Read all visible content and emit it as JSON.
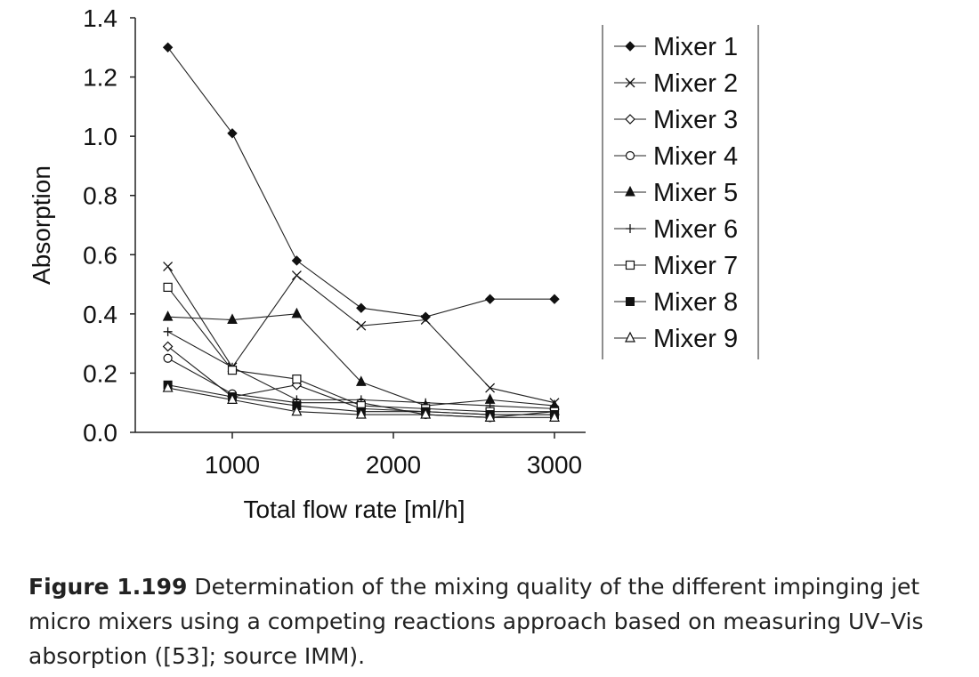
{
  "chart_data": {
    "type": "line",
    "xlabel": "Total flow rate [ml/h]",
    "ylabel": "Absorption",
    "xlim": [
      500,
      3000
    ],
    "ylim": [
      0,
      1.4
    ],
    "x_ticks": [
      "1000",
      "2000",
      "3000"
    ],
    "y_ticks": [
      "0.0",
      "0.2",
      "0.4",
      "0.6",
      "0.8",
      "1.0",
      "1.2",
      "1.4"
    ],
    "x": [
      600,
      1000,
      1400,
      1800,
      2200,
      2600,
      3000
    ],
    "legend_position": "right",
    "series": [
      {
        "name": "Mixer 1",
        "marker": "filled-diamond",
        "values": [
          1.3,
          1.01,
          0.58,
          0.42,
          0.39,
          0.45,
          0.45
        ]
      },
      {
        "name": "Mixer 2",
        "marker": "x",
        "values": [
          0.56,
          0.22,
          0.53,
          0.36,
          0.38,
          0.15,
          0.1
        ]
      },
      {
        "name": "Mixer 3",
        "marker": "open-diamond",
        "values": [
          0.29,
          0.12,
          0.16,
          0.08,
          0.07,
          0.06,
          0.06
        ]
      },
      {
        "name": "Mixer 4",
        "marker": "open-circle",
        "values": [
          0.25,
          0.13,
          0.1,
          0.1,
          0.06,
          0.05,
          0.07
        ]
      },
      {
        "name": "Mixer 5",
        "marker": "filled-triangle",
        "values": [
          0.39,
          0.38,
          0.4,
          0.17,
          0.09,
          0.11,
          0.09
        ]
      },
      {
        "name": "Mixer 6",
        "marker": "plus",
        "values": [
          0.34,
          0.22,
          0.11,
          0.11,
          0.1,
          0.09,
          0.08
        ]
      },
      {
        "name": "Mixer 7",
        "marker": "open-square",
        "values": [
          0.49,
          0.21,
          0.18,
          0.09,
          0.08,
          0.07,
          0.07
        ]
      },
      {
        "name": "Mixer 8",
        "marker": "filled-square",
        "values": [
          0.16,
          0.12,
          0.09,
          0.07,
          0.07,
          0.06,
          0.06
        ]
      },
      {
        "name": "Mixer 9",
        "marker": "open-triangle",
        "values": [
          0.15,
          0.11,
          0.07,
          0.06,
          0.06,
          0.05,
          0.05
        ]
      }
    ]
  },
  "caption": {
    "label": "Figure 1.199",
    "text": " Determination of the mixing quality of the different impinging jet micro mixers using a competing reactions approach based on measuring UV–Vis absorption ([53]; source IMM)."
  }
}
